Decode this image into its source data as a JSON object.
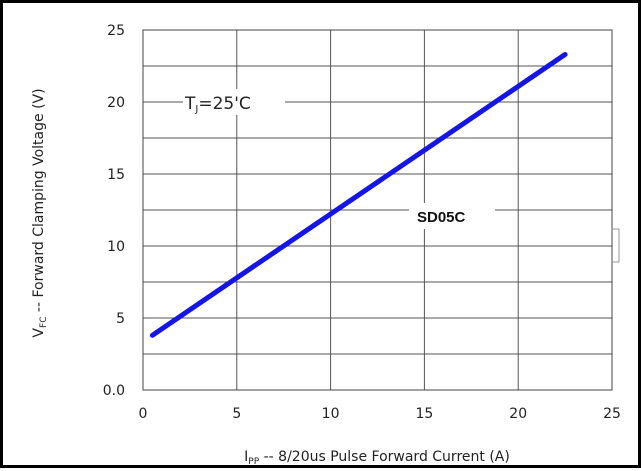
{
  "chart_data": {
    "type": "line",
    "title": "",
    "xlabel": {
      "prefix": "I",
      "sub": "PP",
      "rest": " -- 8/20us Pulse Forward Current (A)"
    },
    "ylabel": {
      "prefix": "V",
      "sub": "FC",
      "rest": " -- Forward Clamping Voltage (V)"
    },
    "xlim": [
      0,
      25
    ],
    "ylim": [
      0,
      25
    ],
    "x_ticks": [
      0,
      5,
      10,
      15,
      20,
      25
    ],
    "x_tick_labels": [
      "0",
      "5",
      "10",
      "15",
      "20",
      "25"
    ],
    "y_ticks": [
      0,
      5,
      10,
      15,
      20,
      25
    ],
    "y_tick_labels": [
      "0.0",
      "5",
      "10",
      "15",
      "20",
      "25"
    ],
    "grid": true,
    "series": [
      {
        "name": "SD05C",
        "color": "#1515e6",
        "x": [
          0.5,
          22.5
        ],
        "y": [
          3.8,
          23.3
        ]
      }
    ],
    "annotations": {
      "temperature": {
        "prefix": "T",
        "sub": "J",
        "rest": "=25'C"
      },
      "series_label": "SD05C"
    }
  }
}
